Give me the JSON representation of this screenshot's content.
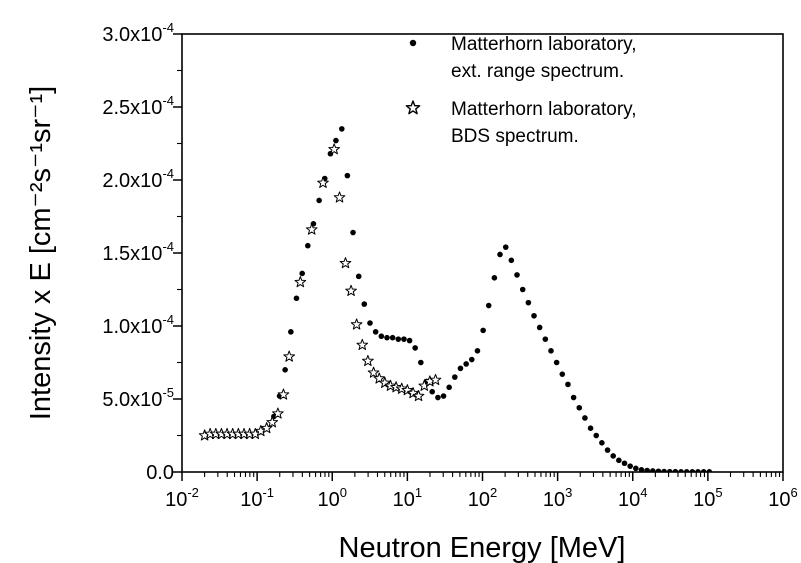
{
  "chart_data": {
    "type": "scatter",
    "title": "",
    "xlabel": "Neutron Energy [MeV]",
    "ylabel": "Intensity x E [cm⁻²s⁻¹sr⁻¹]",
    "xscale": "log",
    "xlim": [
      0.01,
      1000000
    ],
    "ylim": [
      0,
      0.0003
    ],
    "grid": false,
    "legend_position": "top-right",
    "x_ticks": [
      {
        "value": 0.01,
        "base": "10",
        "exp": "-2"
      },
      {
        "value": 0.1,
        "base": "10",
        "exp": "-1"
      },
      {
        "value": 1,
        "base": "10",
        "exp": "0"
      },
      {
        "value": 10,
        "base": "10",
        "exp": "1"
      },
      {
        "value": 100,
        "base": "10",
        "exp": "2"
      },
      {
        "value": 1000,
        "base": "10",
        "exp": "3"
      },
      {
        "value": 10000,
        "base": "10",
        "exp": "4"
      },
      {
        "value": 100000,
        "base": "10",
        "exp": "5"
      },
      {
        "value": 1000000,
        "base": "10",
        "exp": "6"
      }
    ],
    "y_ticks": [
      {
        "value": 0,
        "mant": "0.0",
        "exp": ""
      },
      {
        "value": 5e-05,
        "mant": "5.0x10",
        "exp": "-5"
      },
      {
        "value": 0.0001,
        "mant": "1.0x10",
        "exp": "-4"
      },
      {
        "value": 0.00015,
        "mant": "1.5x10",
        "exp": "-4"
      },
      {
        "value": 0.0002,
        "mant": "2.0x10",
        "exp": "-4"
      },
      {
        "value": 0.00025,
        "mant": "2.5x10",
        "exp": "-4"
      },
      {
        "value": 0.0003,
        "mant": "3.0x10",
        "exp": "-4"
      }
    ],
    "legend": [
      {
        "lines": [
          "Matterhorn laboratory,",
          "ext. range spectrum."
        ],
        "marker": "dot"
      },
      {
        "lines": [
          "Matterhorn laboratory,",
          "BDS spectrum."
        ],
        "marker": "star"
      }
    ],
    "series": [
      {
        "name": "Matterhorn laboratory, ext. range spectrum.",
        "marker": "dot",
        "x": [
          0.167,
          0.199,
          0.236,
          0.281,
          0.334,
          0.398,
          0.473,
          0.562,
          0.669,
          0.795,
          0.946,
          1.12,
          1.34,
          1.59,
          1.89,
          2.25,
          2.67,
          3.18,
          3.78,
          4.5,
          5.35,
          6.36,
          7.57,
          9.0,
          10.7,
          12.7,
          15.1,
          18.0,
          21.4,
          25.5,
          30.3,
          36.0,
          42.8,
          50.9,
          60.6,
          72.0,
          85.7,
          102,
          121,
          144,
          171,
          204,
          242,
          288,
          343,
          408,
          485,
          577,
          686,
          816,
          970,
          1154,
          1372,
          1632,
          1941,
          2308,
          2745,
          3265,
          3883,
          4618,
          5492,
          6531,
          7767,
          9237,
          10985,
          13064,
          15536,
          18476,
          21973,
          26131,
          31076,
          36957,
          43951,
          52269,
          62161,
          73925,
          87916,
          104555
        ],
        "y": [
          3.8e-05,
          5.2e-05,
          7e-05,
          9.6e-05,
          0.000119,
          0.000136,
          0.000155,
          0.00017,
          0.000186,
          0.000201,
          0.000218,
          0.000227,
          0.000235,
          0.000203,
          0.000164,
          0.000134,
          0.000115,
          0.000102,
          9.6e-05,
          9.3e-05,
          9.2e-05,
          9.2e-05,
          9.1e-05,
          9.1e-05,
          9e-05,
          8.5e-05,
          7.5e-05,
          6.2e-05,
          5.5e-05,
          5.1e-05,
          5.2e-05,
          5.8e-05,
          6.5e-05,
          7.1e-05,
          7.4e-05,
          7.7e-05,
          8.3e-05,
          9.7e-05,
          0.000114,
          0.000133,
          0.000149,
          0.000154,
          0.000145,
          0.000135,
          0.000125,
          0.000116,
          0.000107,
          9.9e-05,
          9.1e-05,
          8.3e-05,
          7.5e-05,
          6.7e-05,
          6e-05,
          5.1e-05,
          4.4e-05,
          3.7e-05,
          3e-05,
          2.5e-05,
          2e-05,
          1.5e-05,
          1.1e-05,
          8e-06,
          6e-06,
          4e-06,
          2.5e-06,
          1.5e-06,
          1e-06,
          7e-07,
          5e-07,
          3e-07,
          2e-07,
          2e-07,
          1e-07,
          1e-07,
          1e-07,
          1e-07,
          1e-07,
          1e-07
        ]
      },
      {
        "name": "Matterhorn laboratory, BDS spectrum.",
        "marker": "star",
        "x": [
          0.02,
          0.0237,
          0.0282,
          0.0335,
          0.0398,
          0.0473,
          0.0563,
          0.0669,
          0.0795,
          0.0945,
          0.112,
          0.134,
          0.159,
          0.189,
          0.224,
          0.267,
          0.376,
          0.533,
          0.753,
          1.06,
          1.25,
          1.5,
          1.78,
          2.11,
          2.51,
          2.98,
          3.55,
          4.22,
          5.01,
          5.96,
          7.08,
          8.41,
          10.0,
          11.9,
          14.1,
          16.8,
          19.9,
          23.7
        ],
        "y": [
          2.5e-05,
          2.6e-05,
          2.6e-05,
          2.6e-05,
          2.6e-05,
          2.6e-05,
          2.6e-05,
          2.6e-05,
          2.6e-05,
          2.6e-05,
          2.8e-05,
          3e-05,
          3.4e-05,
          4e-05,
          5.3e-05,
          7.9e-05,
          0.00013,
          0.000166,
          0.000198,
          0.000221,
          0.000188,
          0.000143,
          0.000124,
          0.000101,
          8.7e-05,
          7.6e-05,
          6.8e-05,
          6.4e-05,
          6.1e-05,
          5.9e-05,
          5.8e-05,
          5.7e-05,
          5.6e-05,
          5.4e-05,
          5.2e-05,
          5.9e-05,
          6.2e-05,
          6.3e-05
        ]
      }
    ]
  }
}
